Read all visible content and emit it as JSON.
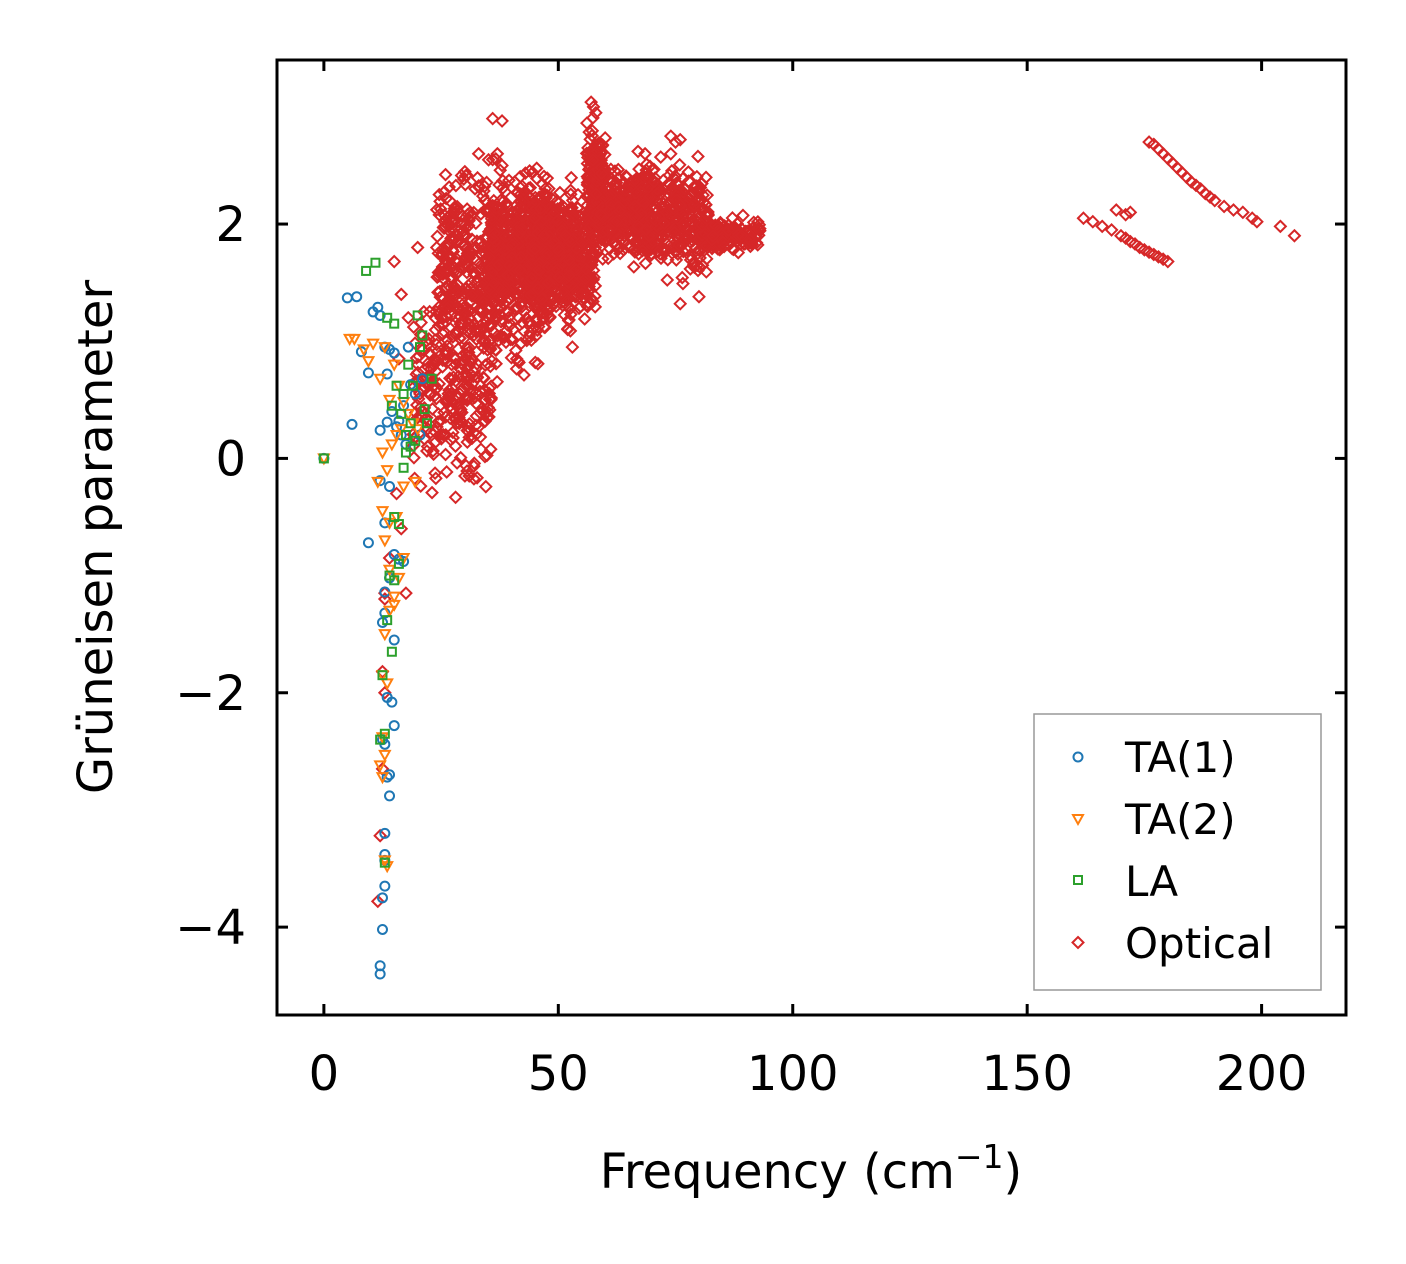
{
  "chart_data": {
    "type": "scatter",
    "title": "",
    "xlabel": "Frequency (cm",
    "xlabel_sup": "−1",
    "xlabel_close": ")",
    "ylabel": "Grüneisen parameter",
    "xlim": [
      -10,
      218
    ],
    "ylim": [
      -4.75,
      3.4
    ],
    "xticks": [
      0,
      50,
      100,
      150,
      200
    ],
    "xtick_labels": [
      "0",
      "50",
      "100",
      "150",
      "200"
    ],
    "yticks": [
      -4,
      -2,
      0,
      2
    ],
    "ytick_labels": [
      "−4",
      "−2",
      "0",
      "2"
    ],
    "grid": false,
    "legend_position": "lower-right",
    "series": [
      {
        "name": "TA(1)",
        "marker": "circle",
        "color": "#1f77b4",
        "x": [
          0,
          5,
          7,
          8,
          9.5,
          10.5,
          11.5,
          12,
          13,
          13.5,
          14,
          15,
          16,
          17,
          18,
          6,
          12,
          13.5,
          14.5,
          15.5,
          16.5,
          17.5,
          9.5,
          13,
          14,
          15,
          16,
          17,
          12,
          13,
          14,
          15,
          13,
          12.5,
          13.5,
          14.5,
          15,
          12.5,
          13,
          14,
          13.5,
          14,
          13,
          13,
          13,
          13,
          12.5,
          12.5,
          12,
          12,
          18.5,
          19.5,
          20.5,
          21
        ],
        "y": [
          0,
          1.37,
          1.38,
          0.91,
          0.73,
          1.25,
          1.29,
          1.22,
          0.95,
          0.72,
          0.93,
          0.9,
          0.32,
          0.45,
          0.95,
          0.29,
          0.24,
          0.31,
          0.4,
          0.27,
          0.2,
          0.12,
          -0.72,
          -0.55,
          -0.24,
          -0.82,
          -0.86,
          -0.88,
          -0.19,
          -1.14,
          -1.02,
          -1.55,
          -1.32,
          -1.4,
          -2.04,
          -2.08,
          -2.28,
          -2.4,
          -2.44,
          -2.7,
          -2.72,
          -2.88,
          -3.2,
          -3.38,
          -3.43,
          -3.65,
          -3.75,
          -4.02,
          -4.33,
          -4.4,
          0.63,
          0.55,
          0.2,
          0.68
        ]
      },
      {
        "name": "TA(2)",
        "marker": "triangle-down",
        "color": "#ff7f0e",
        "x": [
          0,
          5.5,
          6.5,
          8.5,
          9.5,
          10.5,
          12,
          13,
          14,
          15,
          16,
          17,
          18,
          19,
          12.5,
          13.5,
          14.5,
          15.5,
          16.5,
          11.5,
          12.5,
          14,
          15.5,
          17,
          13,
          14,
          15,
          16,
          17,
          14,
          15,
          13,
          12.5,
          13.5,
          12.5,
          13,
          12,
          12.5,
          13,
          13.5,
          19.5,
          20
        ],
        "y": [
          0,
          1.02,
          1.02,
          0.93,
          0.83,
          0.98,
          0.68,
          0.95,
          0.5,
          0.8,
          0.62,
          0.48,
          0.38,
          0.3,
          0.05,
          -0.1,
          0.12,
          0.2,
          0.25,
          -0.2,
          -0.45,
          -0.55,
          -0.5,
          -0.24,
          -0.7,
          -0.95,
          -1.18,
          -1.02,
          -0.85,
          -1.3,
          -1.25,
          -1.5,
          -1.85,
          -1.92,
          -2.38,
          -2.53,
          -2.62,
          -2.72,
          -3.43,
          -3.48,
          -0.2,
          0.25
        ]
      },
      {
        "name": "LA",
        "marker": "square",
        "color": "#2ca02c",
        "x": [
          0,
          9,
          11,
          13.5,
          15,
          17,
          18,
          19,
          20,
          20.5,
          21,
          21.5,
          22,
          23,
          14.5,
          15.5,
          16.5,
          17.5,
          18.5,
          19.5,
          15,
          16,
          17,
          14,
          15,
          16,
          13.5,
          14.5,
          12.5,
          13,
          12,
          13,
          17.5,
          18.5
        ],
        "y": [
          0,
          1.6,
          1.67,
          1.2,
          1.15,
          0.55,
          0.8,
          0.62,
          1.22,
          0.95,
          1.05,
          0.42,
          0.3,
          0.68,
          0.45,
          0.62,
          0.38,
          0.2,
          0.3,
          0.15,
          -0.5,
          -0.56,
          -0.08,
          -1.0,
          -1.04,
          -0.9,
          -1.38,
          -1.65,
          -1.85,
          -2.35,
          -2.4,
          -3.45,
          0.05,
          0.1
        ],
        "_note": "green squares clustered near the low-frequency acoustic branches"
      },
      {
        "name": "Optical",
        "marker": "diamond",
        "color": "#d62728",
        "clusters": [
          {
            "x_range": [
              19,
              36
            ],
            "y_range": [
              -0.5,
              1.6
            ],
            "count": 260
          },
          {
            "x_range": [
              24,
              48
            ],
            "y_range": [
              0.5,
              2.7
            ],
            "count": 620
          },
          {
            "x_range": [
              35,
              55
            ],
            "y_range": [
              1.0,
              2.6
            ],
            "count": 520
          },
          {
            "x_range": [
              44,
              58
            ],
            "y_range": [
              1.0,
              2.4
            ],
            "count": 340
          },
          {
            "x_range": [
              56,
              60
            ],
            "y_range": [
              1.6,
              3.0
            ],
            "count": 180
          },
          {
            "x_range": [
              58,
              70
            ],
            "y_range": [
              1.6,
              2.6
            ],
            "count": 300
          },
          {
            "x_range": [
              66,
              82
            ],
            "y_range": [
              1.4,
              2.7
            ],
            "count": 380
          },
          {
            "x_range": [
              80,
              93
            ],
            "y_range": [
              1.7,
              2.1
            ],
            "count": 160
          }
        ],
        "x": [
          15,
          16,
          14,
          13,
          15.5,
          16.5,
          17.5,
          13,
          12.5,
          12,
          11.5,
          12.5,
          13,
          16.5,
          18,
          20,
          26,
          29,
          31,
          31,
          36,
          38,
          28,
          33,
          45,
          47,
          52,
          53,
          57,
          57.5,
          58,
          67,
          68.5,
          74,
          75,
          76,
          36,
          37,
          38,
          76,
          80,
          162,
          164,
          166,
          168,
          170,
          171,
          172,
          173,
          174,
          175,
          176,
          177,
          178,
          179,
          180,
          176,
          177,
          178,
          179,
          180,
          181,
          182,
          183,
          184,
          185,
          186,
          187,
          188,
          189,
          190,
          192,
          194,
          196,
          198,
          199,
          204,
          207,
          169,
          171,
          172
        ],
        "y": [
          1.68,
          0.85,
          -0.85,
          -1.2,
          -0.3,
          -0.6,
          -1.15,
          -2.0,
          -2.65,
          -3.22,
          -3.78,
          -1.82,
          -1.15,
          1.4,
          1.2,
          1.8,
          0.2,
          0.55,
          -0.15,
          0.18,
          2.9,
          2.88,
          2.1,
          2.6,
          2.05,
          1.9,
          1.1,
          0.95,
          3.04,
          3.0,
          2.95,
          2.62,
          2.6,
          2.75,
          2.7,
          2.72,
          2.55,
          2.6,
          2.5,
          1.32,
          1.38,
          2.05,
          2.02,
          1.98,
          1.95,
          1.9,
          1.88,
          1.85,
          1.83,
          1.8,
          1.78,
          1.76,
          1.74,
          1.72,
          1.7,
          1.68,
          2.7,
          2.68,
          2.64,
          2.6,
          2.56,
          2.52,
          2.48,
          2.44,
          2.4,
          2.36,
          2.33,
          2.3,
          2.26,
          2.23,
          2.2,
          2.15,
          2.12,
          2.1,
          2.05,
          2.02,
          1.98,
          1.9,
          2.12,
          2.08,
          2.1
        ]
      }
    ]
  }
}
